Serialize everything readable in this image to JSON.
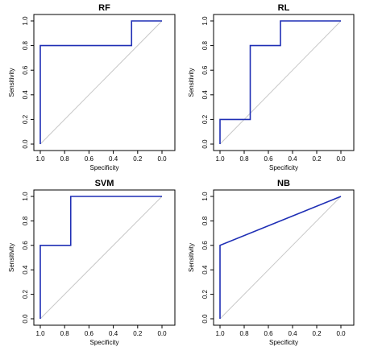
{
  "chart_data": [
    {
      "type": "line",
      "title": "RF",
      "xlabel": "Specificity",
      "ylabel": "Sensitivity",
      "x_reversed": true,
      "xlim": [
        1.0,
        0.0
      ],
      "ylim": [
        0.0,
        1.0
      ],
      "xticks": [
        "1.0",
        "0.8",
        "0.6",
        "0.4",
        "0.2",
        "0.0"
      ],
      "yticks": [
        "0.0",
        "0.2",
        "0.4",
        "0.6",
        "0.8",
        "1.0"
      ],
      "reference_line": true,
      "line_color": "#1f2fb5",
      "reference_color": "#c8c8c8",
      "series": [
        {
          "specificity": [
            1.0,
            1.0,
            0.25,
            0.25,
            0.0
          ],
          "sensitivity": [
            0.0,
            0.8,
            0.8,
            1.0,
            1.0
          ]
        }
      ]
    },
    {
      "type": "line",
      "title": "RL",
      "xlabel": "Specificity",
      "ylabel": "Sensitivity",
      "x_reversed": true,
      "xlim": [
        1.0,
        0.0
      ],
      "ylim": [
        0.0,
        1.0
      ],
      "xticks": [
        "1.0",
        "0.8",
        "0.6",
        "0.4",
        "0.2",
        "0.0"
      ],
      "yticks": [
        "0.0",
        "0.2",
        "0.4",
        "0.6",
        "0.8",
        "1.0"
      ],
      "reference_line": true,
      "line_color": "#1f2fb5",
      "reference_color": "#c8c8c8",
      "series": [
        {
          "specificity": [
            1.0,
            1.0,
            0.75,
            0.75,
            0.5,
            0.5,
            0.0
          ],
          "sensitivity": [
            0.0,
            0.2,
            0.2,
            0.8,
            0.8,
            1.0,
            1.0
          ]
        }
      ]
    },
    {
      "type": "line",
      "title": "SVM",
      "xlabel": "Specificity",
      "ylabel": "Sensitivity",
      "x_reversed": true,
      "xlim": [
        1.0,
        0.0
      ],
      "ylim": [
        0.0,
        1.0
      ],
      "xticks": [
        "1.0",
        "0.8",
        "0.6",
        "0.4",
        "0.2",
        "0.0"
      ],
      "yticks": [
        "0.0",
        "0.2",
        "0.4",
        "0.6",
        "0.8",
        "1.0"
      ],
      "reference_line": true,
      "line_color": "#1f2fb5",
      "reference_color": "#c8c8c8",
      "series": [
        {
          "specificity": [
            1.0,
            1.0,
            0.75,
            0.75,
            0.0
          ],
          "sensitivity": [
            0.0,
            0.6,
            0.6,
            1.0,
            1.0
          ]
        }
      ]
    },
    {
      "type": "line",
      "title": "NB",
      "xlabel": "Specificity",
      "ylabel": "Sensitivity",
      "x_reversed": true,
      "xlim": [
        1.0,
        0.0
      ],
      "ylim": [
        0.0,
        1.0
      ],
      "xticks": [
        "1.0",
        "0.8",
        "0.6",
        "0.4",
        "0.2",
        "0.0"
      ],
      "yticks": [
        "0.0",
        "0.2",
        "0.4",
        "0.6",
        "0.8",
        "1.0"
      ],
      "reference_line": true,
      "line_color": "#1f2fb5",
      "reference_color": "#c8c8c8",
      "series": [
        {
          "specificity": [
            1.0,
            1.0,
            0.0
          ],
          "sensitivity": [
            0.0,
            0.6,
            1.0
          ]
        }
      ]
    }
  ]
}
